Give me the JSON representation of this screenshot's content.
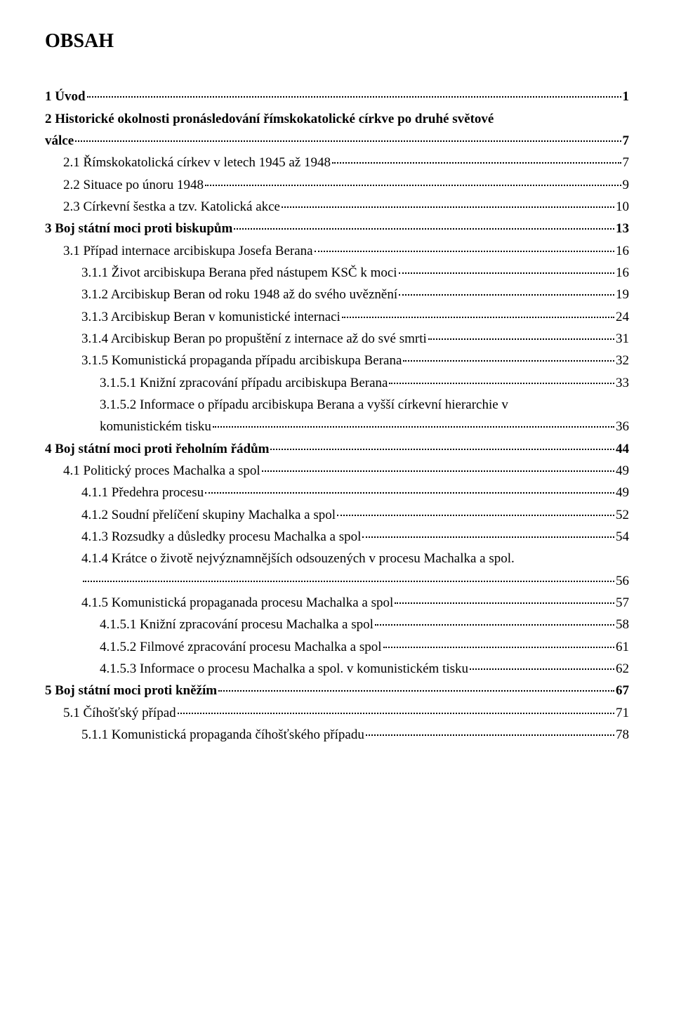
{
  "title": "OBSAH",
  "entries": [
    {
      "label": "1 Úvod",
      "page": "1",
      "level": 0,
      "bold": true
    },
    {
      "label": "2 Historické okolnosti pronásledování římskokatolické církve po druhé světové",
      "cont": "válce",
      "page": "7",
      "level": 0,
      "bold": true
    },
    {
      "label": "2.1 Římskokatolická církev v letech 1945 až 1948",
      "page": "7",
      "level": 1,
      "bold": false
    },
    {
      "label": "2.2 Situace po únoru 1948",
      "page": "9",
      "level": 1,
      "bold": false
    },
    {
      "label": "2.3 Církevní šestka a tzv. Katolická akce",
      "page": "10",
      "level": 1,
      "bold": false
    },
    {
      "label": "3 Boj státní moci proti biskupům",
      "page": "13",
      "level": 0,
      "bold": true
    },
    {
      "label": "3.1 Případ internace arcibiskupa Josefa Berana",
      "page": "16",
      "level": 1,
      "bold": false
    },
    {
      "label": "3.1.1 Život arcibiskupa Berana před nástupem KSČ k moci",
      "page": "16",
      "level": 2,
      "bold": false
    },
    {
      "label": "3.1.2 Arcibiskup Beran od roku 1948 až do svého uvěznění",
      "page": "19",
      "level": 2,
      "bold": false
    },
    {
      "label": "3.1.3 Arcibiskup Beran v komunistické internaci",
      "page": "24",
      "level": 2,
      "bold": false
    },
    {
      "label": "3.1.4 Arcibiskup Beran po propuštění z internace až do své smrti",
      "page": "31",
      "level": 2,
      "bold": false
    },
    {
      "label": "3.1.5 Komunistická propaganda případu arcibiskupa Berana",
      "page": "32",
      "level": 2,
      "bold": false
    },
    {
      "label": "3.1.5.1 Knižní zpracování případu arcibiskupa Berana",
      "page": "33",
      "level": 3,
      "bold": false
    },
    {
      "label": "3.1.5.2 Informace o případu arcibiskupa Berana a vyšší církevní hierarchie v",
      "cont": "komunistickém tisku",
      "page": "36",
      "level": 3,
      "bold": false
    },
    {
      "label": "4 Boj státní moci proti řeholním řádům",
      "page": "44",
      "level": 0,
      "bold": true
    },
    {
      "label": "4.1 Politický proces Machalka a spol",
      "page": "49",
      "level": 1,
      "bold": false
    },
    {
      "label": "4.1.1 Předehra procesu",
      "page": "49",
      "level": 2,
      "bold": false
    },
    {
      "label": "4.1.2 Soudní přelíčení skupiny Machalka a spol",
      "page": "52",
      "level": 2,
      "bold": false
    },
    {
      "label": "4.1.3 Rozsudky a důsledky procesu Machalka a spol",
      "page": "54",
      "level": 2,
      "bold": false
    },
    {
      "label": "4.1.4 Krátce o životě nejvýznamnějších odsouzených v procesu Machalka a spol.",
      "cont": "",
      "page": "56",
      "level": 2,
      "bold": false
    },
    {
      "label": "4.1.5 Komunistická propaganada procesu Machalka a spol",
      "page": "57",
      "level": 2,
      "bold": false
    },
    {
      "label": "4.1.5.1 Knižní zpracování procesu Machalka a spol",
      "page": "58",
      "level": 3,
      "bold": false
    },
    {
      "label": "4.1.5.2 Filmové zpracování procesu Machalka a spol",
      "page": "61",
      "level": 3,
      "bold": false
    },
    {
      "label": "4.1.5.3 Informace o procesu Machalka a spol. v komunistickém tisku",
      "page": "62",
      "level": 3,
      "bold": false
    },
    {
      "label": "5 Boj státní moci proti kněžím",
      "page": "67",
      "level": 0,
      "bold": true
    },
    {
      "label": "5.1 Číhošťský případ",
      "page": "71",
      "level": 1,
      "bold": false
    },
    {
      "label": "5.1.1 Komunistická propaganda číhošťského případu",
      "page": "78",
      "level": 2,
      "bold": false
    }
  ]
}
